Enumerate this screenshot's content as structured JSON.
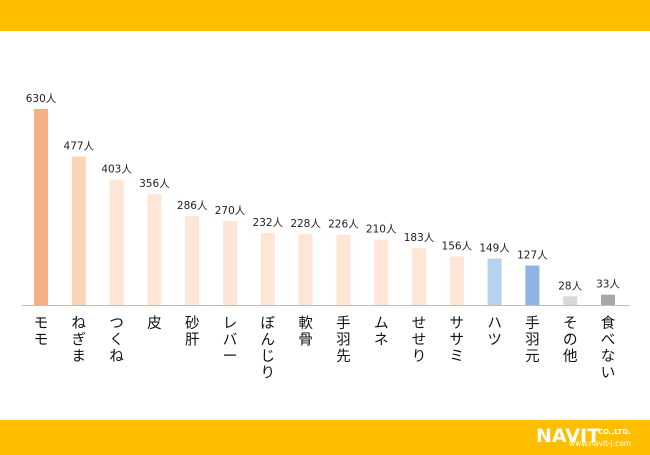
{
  "chart_data": {
    "type": "bar",
    "categories": [
      "モモ",
      "ねぎま",
      "つくね",
      "皮",
      "砂肝",
      "レバー",
      "ぼんじり",
      "軟骨",
      "手羽先",
      "ムネ",
      "せせり",
      "ササミ",
      "ハツ",
      "手羽元",
      "その他",
      "食べない"
    ],
    "values": [
      630,
      477,
      403,
      356,
      286,
      270,
      232,
      228,
      226,
      210,
      183,
      156,
      149,
      127,
      28,
      33
    ],
    "data_labels": [
      "630人",
      "477人",
      "403人",
      "356人",
      "286人",
      "270人",
      "232人",
      "228人",
      "226人",
      "210人",
      "183人",
      "156人",
      "149人",
      "127人",
      "28人",
      "33人"
    ],
    "colors": [
      "#F5B087",
      "#FBD3B5",
      "#FDE6D5",
      "#FDE6D5",
      "#FDE6D5",
      "#FDE6D5",
      "#FDE6D5",
      "#FDE6D5",
      "#FDE6D5",
      "#FDE6D5",
      "#FDE6D5",
      "#FDE6D5",
      "#B5D3EE",
      "#8FB4E3",
      "#D9D9D9",
      "#A6A6A6"
    ],
    "title": "",
    "xlabel": "",
    "ylabel": "",
    "ylim": [
      0,
      700
    ],
    "grid": false,
    "legend": "none"
  },
  "branding": {
    "logo_text": "NAVIT",
    "logo_suffix": "CO.,LTD.",
    "url": "www.navit-j.com",
    "band_color": "#FFBE00"
  }
}
